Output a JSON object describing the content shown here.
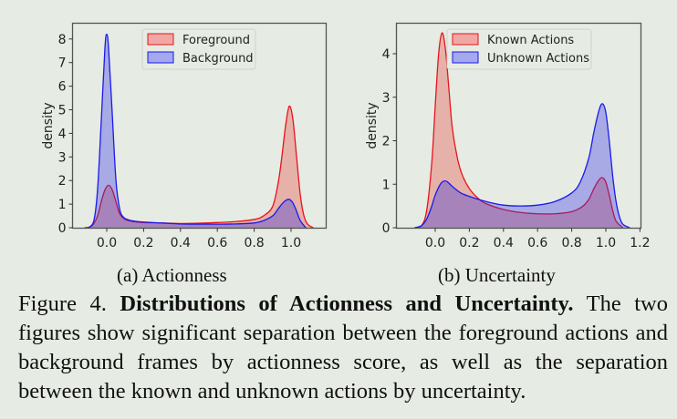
{
  "subcaptions": {
    "a": "(a) Actionness",
    "b": "(b) Uncertainty"
  },
  "caption": {
    "label": "Figure 4.",
    "title": "Distributions of Actionness and Uncertainty.",
    "body": "The two figures show significant separation between the foreground actions and background frames by actionness score, as well as the separation between the known and unknown actions by uncertainty."
  },
  "colors": {
    "red": "#e8141c",
    "red_fill": "#f0a8a4",
    "blue": "#1a1aee",
    "blue_fill": "#a4a8ec",
    "overlap": "#b07ab8",
    "axis": "#555555",
    "background": "#e6ebe3"
  },
  "chart_data": [
    {
      "type": "area",
      "title": "(a) Actionness",
      "xlabel": "",
      "ylabel": "density",
      "xlim": [
        -0.19,
        1.2
      ],
      "ylim": [
        0,
        8.8
      ],
      "xticks": [
        "0.0",
        "0.2",
        "0.4",
        "0.6",
        "0.8",
        "1.0"
      ],
      "yticks": [
        "0",
        "1",
        "2",
        "3",
        "4",
        "5",
        "6",
        "7",
        "8"
      ],
      "grid": false,
      "legend_position": "upper center",
      "series": [
        {
          "name": "Foreground",
          "color": "#e8141c",
          "x": [
            -0.12,
            -0.08,
            -0.05,
            -0.03,
            -0.01,
            0.01,
            0.03,
            0.05,
            0.07,
            0.1,
            0.15,
            0.2,
            0.3,
            0.4,
            0.5,
            0.6,
            0.7,
            0.8,
            0.85,
            0.9,
            0.93,
            0.95,
            0.97,
            0.99,
            1.01,
            1.03,
            1.05,
            1.07,
            1.09,
            1.12
          ],
          "values": [
            0,
            0.08,
            0.5,
            1.1,
            1.6,
            1.8,
            1.6,
            1.1,
            0.6,
            0.35,
            0.25,
            0.22,
            0.2,
            0.18,
            0.19,
            0.22,
            0.26,
            0.35,
            0.5,
            0.9,
            1.9,
            3.0,
            4.3,
            5.15,
            4.6,
            3.0,
            1.4,
            0.5,
            0.15,
            0
          ]
        },
        {
          "name": "Background",
          "color": "#1a1aee",
          "x": [
            -0.1,
            -0.07,
            -0.05,
            -0.03,
            -0.01,
            0.0,
            0.01,
            0.03,
            0.05,
            0.07,
            0.09,
            0.12,
            0.15,
            0.2,
            0.3,
            0.4,
            0.5,
            0.6,
            0.7,
            0.8,
            0.85,
            0.9,
            0.93,
            0.95,
            0.97,
            0.99,
            1.01,
            1.03,
            1.05,
            1.08
          ],
          "values": [
            0,
            0.3,
            1.6,
            4.5,
            7.6,
            8.2,
            7.6,
            4.8,
            2.0,
            0.8,
            0.45,
            0.33,
            0.28,
            0.24,
            0.2,
            0.16,
            0.15,
            0.15,
            0.16,
            0.2,
            0.3,
            0.5,
            0.8,
            1.0,
            1.15,
            1.2,
            1.05,
            0.7,
            0.3,
            0
          ]
        }
      ]
    },
    {
      "type": "area",
      "title": "(b) Uncertainty",
      "xlabel": "",
      "ylabel": "density",
      "xlim": [
        -0.23,
        1.2
      ],
      "ylim": [
        0,
        4.7
      ],
      "xticks": [
        "0.0",
        "0.2",
        "0.4",
        "0.6",
        "0.8",
        "1.0",
        "1.2"
      ],
      "yticks": [
        "0",
        "1",
        "2",
        "3",
        "4"
      ],
      "grid": false,
      "legend_position": "upper center",
      "series": [
        {
          "name": "Known Actions",
          "color": "#e8141c",
          "x": [
            -0.12,
            -0.08,
            -0.05,
            -0.02,
            0.0,
            0.02,
            0.04,
            0.06,
            0.08,
            0.1,
            0.13,
            0.16,
            0.2,
            0.25,
            0.3,
            0.4,
            0.5,
            0.6,
            0.7,
            0.8,
            0.86,
            0.9,
            0.93,
            0.96,
            0.98,
            1.0,
            1.02,
            1.04,
            1.06,
            1.1
          ],
          "values": [
            0,
            0.05,
            0.4,
            1.5,
            2.8,
            4.0,
            4.48,
            4.1,
            3.2,
            2.3,
            1.6,
            1.2,
            0.9,
            0.68,
            0.55,
            0.42,
            0.35,
            0.32,
            0.32,
            0.37,
            0.48,
            0.65,
            0.9,
            1.1,
            1.15,
            1.05,
            0.75,
            0.4,
            0.15,
            0
          ]
        },
        {
          "name": "Unknown Actions",
          "color": "#1a1aee",
          "x": [
            -0.12,
            -0.08,
            -0.05,
            -0.02,
            0.0,
            0.03,
            0.05,
            0.07,
            0.1,
            0.15,
            0.2,
            0.3,
            0.4,
            0.5,
            0.6,
            0.7,
            0.8,
            0.85,
            0.9,
            0.93,
            0.96,
            0.98,
            1.0,
            1.02,
            1.04,
            1.06,
            1.08,
            1.1,
            1.14
          ],
          "values": [
            0,
            0.05,
            0.2,
            0.5,
            0.75,
            1.0,
            1.07,
            1.06,
            0.95,
            0.8,
            0.72,
            0.6,
            0.52,
            0.5,
            0.52,
            0.6,
            0.8,
            1.05,
            1.6,
            2.2,
            2.7,
            2.85,
            2.65,
            2.0,
            1.2,
            0.6,
            0.25,
            0.08,
            0
          ]
        }
      ]
    }
  ]
}
